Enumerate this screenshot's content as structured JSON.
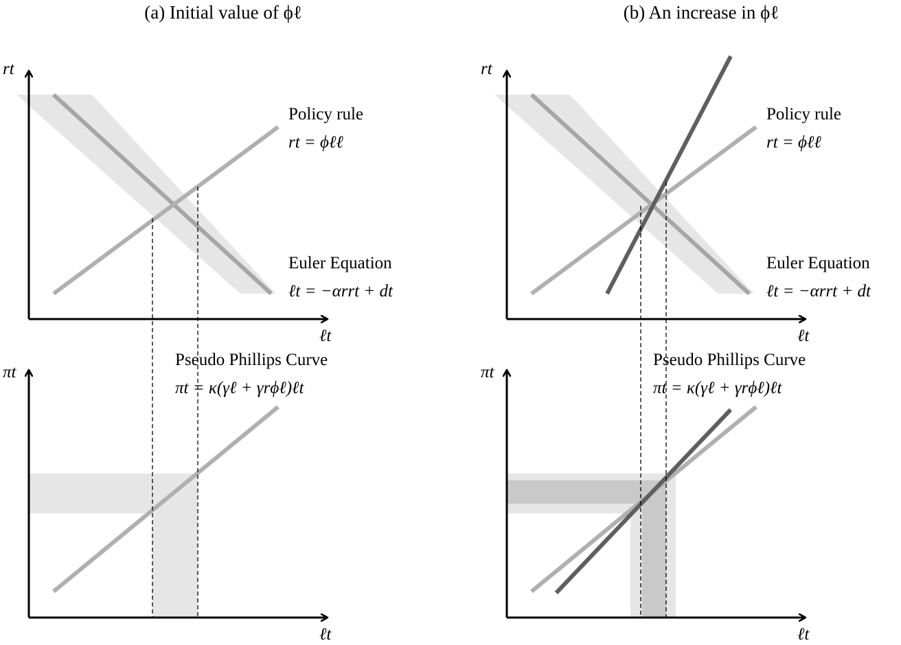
{
  "panel_a": {
    "title": "(a) Initial value of ϕℓ",
    "top_y_axis_label": "rt",
    "top_x_axis_label": "ℓt",
    "bottom_y_axis_label": "πt",
    "bottom_x_axis_label": "ℓt",
    "policy_rule_label": "Policy rule",
    "policy_rule_eq": "rt = ϕℓℓ",
    "euler_label": "Euler Equation",
    "euler_eq": "ℓt = −αrrt + dt",
    "phillips_label": "Pseudo Phillips Curve",
    "phillips_eq": "πt = κ(γℓ + γrϕℓ)ℓt"
  },
  "panel_b": {
    "title": "(b) An increase in ϕℓ",
    "top_y_axis_label": "rt",
    "top_x_axis_label": "ℓt",
    "bottom_y_axis_label": "πt",
    "bottom_x_axis_label": "ℓt",
    "policy_rule_label": "Policy rule",
    "policy_rule_eq": "rt = ϕℓℓ",
    "euler_label": "Euler Equation",
    "euler_eq": "ℓt = −αrrt + dt",
    "phillips_label": "Pseudo Phillips Curve",
    "phillips_eq": "πt = κ(γℓ + γrϕℓ)ℓt"
  },
  "colors": {
    "band_light": "#e6e6e6",
    "band_dark": "#c9c9c9",
    "line_light": "#b0b0b0",
    "line_mid": "#a6a6a6",
    "line_dark": "#5f5f5f",
    "axis": "#000000"
  }
}
